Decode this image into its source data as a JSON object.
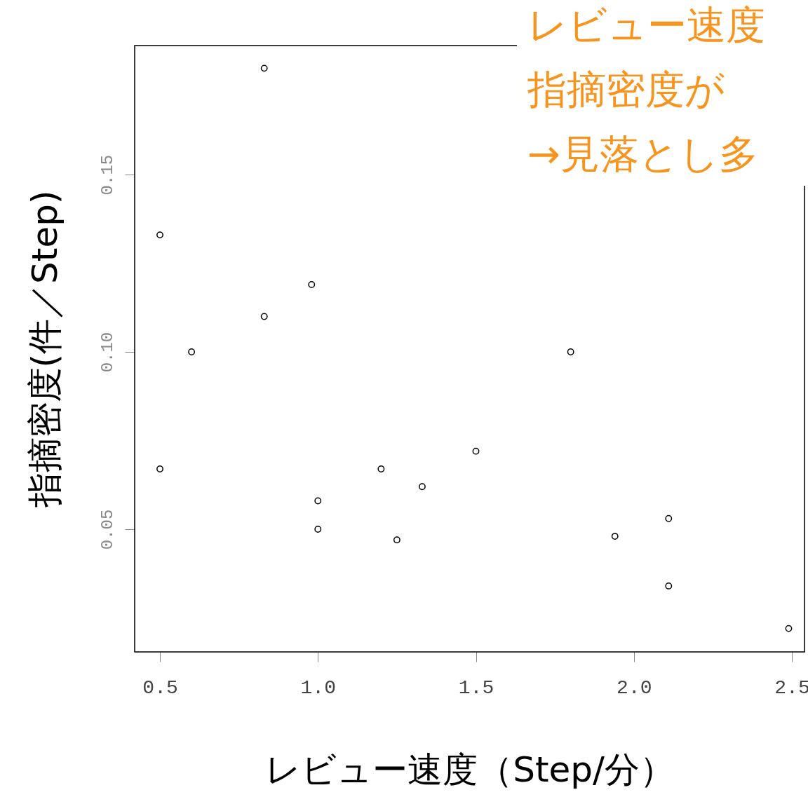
{
  "chart_data": {
    "type": "scatter",
    "xlabel": "レビュー速度（Step/分）",
    "ylabel": "指摘密度(件／Step)",
    "x": [
      0.5,
      0.83,
      0.5,
      0.6,
      0.83,
      0.98,
      1.0,
      1.0,
      1.2,
      1.25,
      1.33,
      1.5,
      1.8,
      1.94,
      2.11,
      2.11,
      2.49
    ],
    "series": [
      {
        "color": "#000000",
        "values": [
          0.133,
          0.18,
          0.067,
          0.1,
          0.11,
          0.119,
          0.058,
          0.05,
          0.067,
          0.047,
          0.062,
          0.072,
          0.1,
          0.048,
          0.053,
          0.034,
          0.022
        ]
      }
    ],
    "xlim": [
      0.42,
      2.54
    ],
    "ylim": [
      0.0154,
      0.1864
    ],
    "xticks": [
      {
        "value": 0.5,
        "label": "0.5"
      },
      {
        "value": 1.0,
        "label": "1.0"
      },
      {
        "value": 1.5,
        "label": "1.5"
      },
      {
        "value": 2.0,
        "label": "2.0"
      },
      {
        "value": 2.5,
        "label": "2.5"
      }
    ],
    "yticks": [
      0.05,
      {
        "value": 0.1,
        "label": "0.10"
      },
      0.15
    ],
    "marker": "circle",
    "grid": false,
    "annotations": [
      "レビュー速度",
      "指摘密度が",
      "→見落とし多"
    ]
  }
}
